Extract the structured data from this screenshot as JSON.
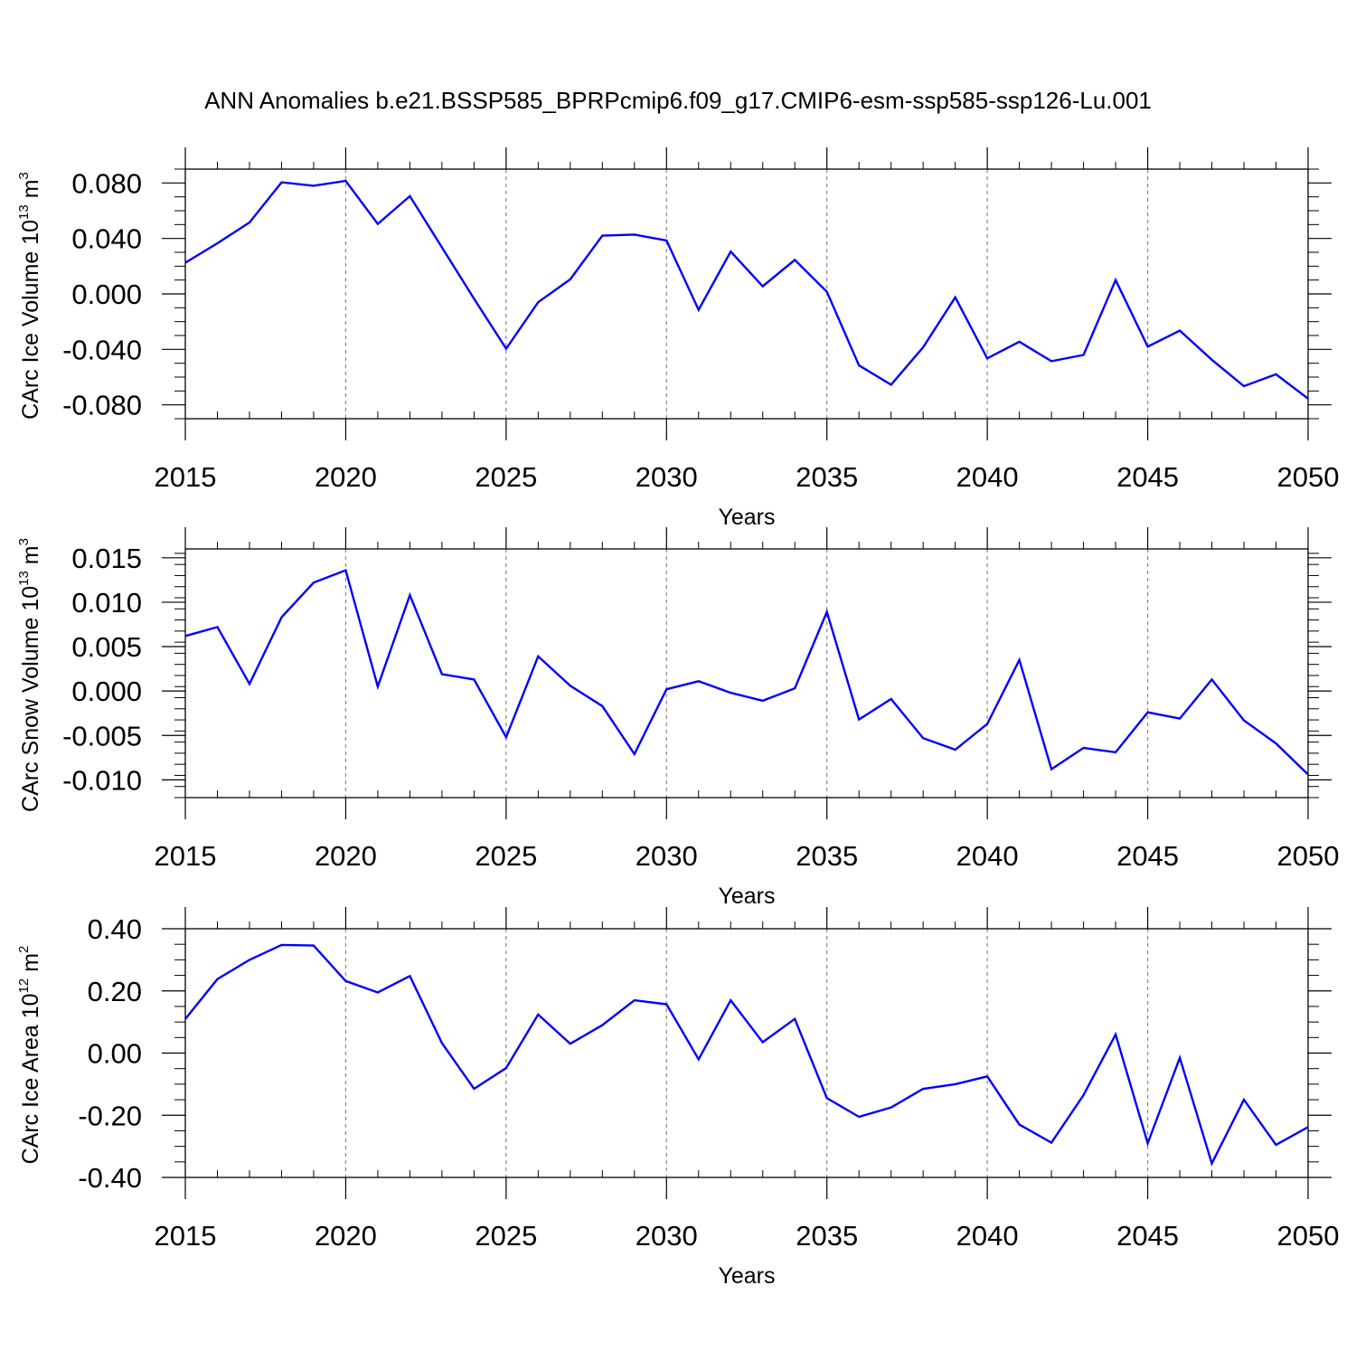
{
  "title": "ANN Anomalies b.e21.BSSP585_BPRPcmip6.f09_g17.CMIP6-esm-ssp585-ssp126-Lu.001",
  "line_color": "#0000ff",
  "chart_data": [
    {
      "type": "line",
      "ylabel": "CArc Ice Volume 10",
      "ylabel_exp": "13",
      "ylabel_unit": " m",
      "ylabel_unit_exp": "3",
      "xlabel": "Years",
      "xlim": [
        2015,
        2050
      ],
      "ylim": [
        -0.09,
        0.09
      ],
      "xticks": [
        2015,
        2020,
        2025,
        2030,
        2035,
        2040,
        2045,
        2050
      ],
      "xtick_labels": [
        "2015",
        "2020",
        "2025",
        "2030",
        "2035",
        "2040",
        "2045",
        "2050"
      ],
      "yticks": [
        0.08,
        0.04,
        0.0,
        -0.04,
        -0.08
      ],
      "ytick_labels": [
        "0.080",
        "0.040",
        "0.000",
        "-0.040",
        "-0.080"
      ],
      "grid": "dashed vertical at labeled years",
      "x": [
        2015,
        2016,
        2017,
        2018,
        2019,
        2020,
        2021,
        2022,
        2023,
        2024,
        2025,
        2026,
        2027,
        2028,
        2029,
        2030,
        2031,
        2032,
        2033,
        2034,
        2035,
        2036,
        2037,
        2038,
        2039,
        2040,
        2041,
        2042,
        2043,
        2044,
        2045,
        2046,
        2047,
        2048,
        2049,
        2050
      ],
      "values": [
        0.0225,
        0.0365,
        0.0515,
        0.0805,
        0.078,
        0.0815,
        0.0505,
        0.0705,
        0.0335,
        -0.0035,
        -0.0395,
        -0.006,
        0.0105,
        0.042,
        0.0428,
        0.0385,
        -0.0115,
        0.0305,
        0.0055,
        0.0245,
        0.0015,
        -0.0515,
        -0.0655,
        -0.0385,
        -0.0025,
        -0.0465,
        -0.0345,
        -0.0485,
        -0.044,
        0.01,
        -0.038,
        -0.0265,
        -0.0475,
        -0.0665,
        -0.058,
        -0.0755
      ]
    },
    {
      "type": "line",
      "ylabel": "CArc Snow Volume 10",
      "ylabel_exp": "13",
      "ylabel_unit": " m",
      "ylabel_unit_exp": "3",
      "xlabel": "Years",
      "xlim": [
        2015,
        2050
      ],
      "ylim": [
        -0.012,
        0.016
      ],
      "xticks": [
        2015,
        2020,
        2025,
        2030,
        2035,
        2040,
        2045,
        2050
      ],
      "xtick_labels": [
        "2015",
        "2020",
        "2025",
        "2030",
        "2035",
        "2040",
        "2045",
        "2050"
      ],
      "yticks": [
        0.015,
        0.01,
        0.005,
        0.0,
        -0.005,
        -0.01
      ],
      "ytick_labels": [
        "0.015",
        "0.010",
        "0.005",
        "0.000",
        "-0.005",
        "-0.010"
      ],
      "grid": "dashed vertical at labeled years",
      "x": [
        2015,
        2016,
        2017,
        2018,
        2019,
        2020,
        2021,
        2022,
        2023,
        2024,
        2025,
        2026,
        2027,
        2028,
        2029,
        2030,
        2031,
        2032,
        2033,
        2034,
        2035,
        2036,
        2037,
        2038,
        2039,
        2040,
        2041,
        2042,
        2043,
        2044,
        2045,
        2046,
        2047,
        2048,
        2049,
        2050
      ],
      "values": [
        0.0062,
        0.0072,
        0.0008,
        0.0083,
        0.0122,
        0.0136,
        0.0005,
        0.0108,
        0.0019,
        0.0013,
        -0.0052,
        0.0039,
        0.0006,
        -0.0017,
        -0.0071,
        0.0002,
        0.0011,
        -0.0002,
        -0.0011,
        0.0003,
        0.0089,
        -0.0032,
        -0.0009,
        -0.0053,
        -0.0066,
        -0.0037,
        0.0035,
        -0.0088,
        -0.0064,
        -0.0069,
        -0.0024,
        -0.0031,
        0.0013,
        -0.0033,
        -0.0059,
        -0.0094
      ]
    },
    {
      "type": "line",
      "ylabel": "CArc Ice Area 10",
      "ylabel_exp": "12",
      "ylabel_unit": " m",
      "ylabel_unit_exp": "2",
      "xlabel": "Years",
      "xlim": [
        2015,
        2050
      ],
      "ylim": [
        -0.4,
        0.4
      ],
      "xticks": [
        2015,
        2020,
        2025,
        2030,
        2035,
        2040,
        2045,
        2050
      ],
      "xtick_labels": [
        "2015",
        "2020",
        "2025",
        "2030",
        "2035",
        "2040",
        "2045",
        "2050"
      ],
      "yticks": [
        0.4,
        0.2,
        0.0,
        -0.2,
        -0.4
      ],
      "ytick_labels": [
        "0.40",
        "0.20",
        "0.00",
        "-0.20",
        "-0.40"
      ],
      "grid": "dashed vertical at labeled years",
      "x": [
        2015,
        2016,
        2017,
        2018,
        2019,
        2020,
        2021,
        2022,
        2023,
        2024,
        2025,
        2026,
        2027,
        2028,
        2029,
        2030,
        2031,
        2032,
        2033,
        2034,
        2035,
        2036,
        2037,
        2038,
        2039,
        2040,
        2041,
        2042,
        2043,
        2044,
        2045,
        2046,
        2047,
        2048,
        2049,
        2050
      ],
      "values": [
        0.11,
        0.238,
        0.3,
        0.348,
        0.346,
        0.232,
        0.195,
        0.248,
        0.032,
        -0.115,
        -0.048,
        0.124,
        0.03,
        0.09,
        0.17,
        0.157,
        -0.02,
        0.17,
        0.035,
        0.11,
        -0.145,
        -0.205,
        -0.175,
        -0.115,
        -0.1,
        -0.075,
        -0.23,
        -0.288,
        -0.135,
        0.06,
        -0.29,
        -0.015,
        -0.355,
        -0.15,
        -0.295,
        -0.238
      ]
    }
  ]
}
